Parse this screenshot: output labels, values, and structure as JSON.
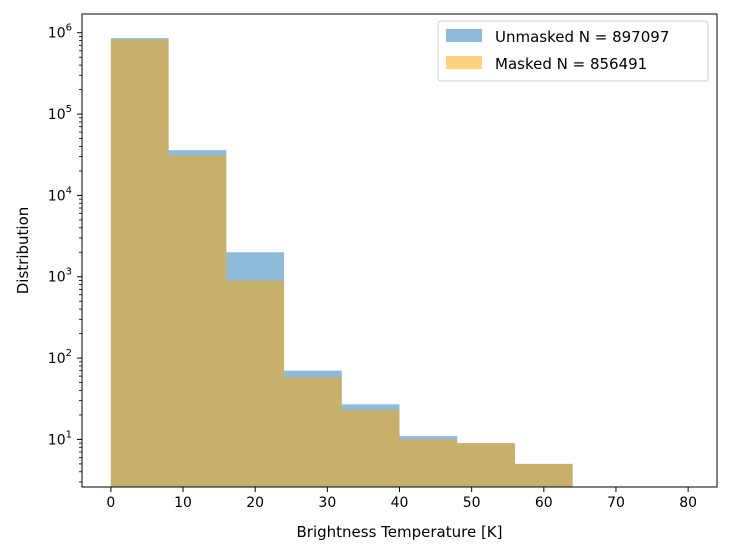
{
  "chart_data": {
    "type": "bar",
    "subtype": "histogram",
    "bin_edges": [
      0,
      8,
      16,
      24,
      32,
      40,
      48,
      56,
      64,
      72,
      80
    ],
    "series": [
      {
        "name": "Unmasked N = 897097",
        "color": "#1f77b4",
        "alpha": 0.5,
        "values": [
          860000,
          36000,
          2000,
          70,
          27,
          11,
          9,
          5,
          0,
          0
        ]
      },
      {
        "name": "Masked N = 856491",
        "color": "#ffa500",
        "alpha": 0.5,
        "values": [
          825000,
          31000,
          900,
          58,
          23,
          10,
          9,
          5,
          0,
          0
        ]
      }
    ],
    "xlabel": "Brightness Temperature [K]",
    "ylabel": "Distribution",
    "xlim": [
      -4,
      84
    ],
    "ylim": [
      2.6,
      1700000
    ],
    "yscale": "log",
    "xticks": [
      0,
      10,
      20,
      30,
      40,
      50,
      60,
      70,
      80
    ],
    "yticks": [
      1,
      2,
      3,
      4,
      5,
      6
    ],
    "legend_position": "top-right",
    "grid": false
  }
}
